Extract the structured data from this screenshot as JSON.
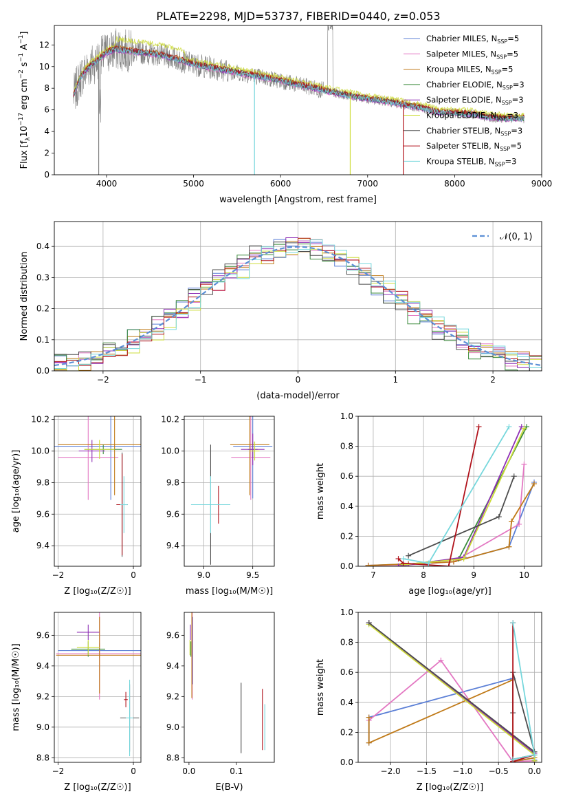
{
  "title": "PLATE=2298, MJD=53737, FIBERID=0440, z=0.053",
  "legend_entries": [
    {
      "name": "Chabrier MILES, N$_{SSP}$=5",
      "label": "Chabrier MILES, N",
      "sub": "SSP",
      "suffix": "=5",
      "color": "#5b7fd6"
    },
    {
      "name": "Salpeter MILES, N$_{SSP}$=5",
      "label": "Salpeter MILES, N",
      "sub": "SSP",
      "suffix": "=5",
      "color": "#e377c2"
    },
    {
      "name": "Kroupa MILES, N$_{SSP}$=5",
      "label": "Kroupa MILES, N",
      "sub": "SSP",
      "suffix": "=5",
      "color": "#c07a18"
    },
    {
      "name": "Chabrier ELODIE, N$_{SSP}$=3",
      "label": "Chabrier ELODIE, N",
      "sub": "SSP",
      "suffix": "=3",
      "color": "#3a8a3a"
    },
    {
      "name": "Salpeter ELODIE, N$_{SSP}$=3",
      "label": "Salpeter ELODIE, N",
      "sub": "SSP",
      "suffix": "=3",
      "color": "#8e2fb5"
    },
    {
      "name": "Kroupa ELODIE, N$_{SSP}$=3",
      "label": "Kroupa ELODIE, N",
      "sub": "SSP",
      "suffix": "=3",
      "color": "#cddc39"
    },
    {
      "name": "Chabrier STELIB, N$_{SSP}$=3",
      "label": "Chabrier STELIB, N",
      "sub": "SSP",
      "suffix": "=3",
      "color": "#4d4d4d"
    },
    {
      "name": "Salpeter STELIB, N$_{SSP}$=5",
      "label": "Salpeter STELIB, N",
      "sub": "SSP",
      "suffix": "=5",
      "color": "#b0121b"
    },
    {
      "name": "Kroupa STELIB, N$_{SSP}$=3",
      "label": "Kroupa STELIB, N",
      "sub": "SSP",
      "suffix": "=3",
      "color": "#76d7dc"
    }
  ],
  "data_color": "#808080",
  "gaussian_color": "#5b8fd6",
  "chart_data": [
    {
      "id": "spectrum",
      "type": "line",
      "xlabel": "wavelength [Angstrom, rest frame]",
      "ylabel_parts": [
        "Flux [f",
        "λ",
        "10",
        "−17",
        " erg cm",
        "−2",
        " s",
        "−1",
        " A",
        "−1",
        "]"
      ],
      "xlim": [
        3400,
        9000
      ],
      "ylim": [
        0,
        13.8
      ],
      "xticks": [
        "4000",
        "5000",
        "6000",
        "7000",
        "8000",
        "9000"
      ],
      "yticks": [
        "0",
        "2",
        "4",
        "6",
        "8",
        "10",
        "12"
      ],
      "spectrum_anchors": {
        "x": [
          3620,
          3700,
          3800,
          3900,
          4000,
          4100,
          4200,
          4400,
          4600,
          4800,
          5000,
          5200,
          5400,
          5600,
          5800,
          6000,
          6200,
          6400,
          6600,
          6800,
          7000,
          7200,
          7400,
          7600,
          7800,
          8000,
          8200,
          8400,
          8600,
          8800
        ],
        "y": [
          7.3,
          9.0,
          10.0,
          10.6,
          11.3,
          11.6,
          11.5,
          11.3,
          11.1,
          10.7,
          10.2,
          9.9,
          9.6,
          9.3,
          9.0,
          8.7,
          8.3,
          8.0,
          7.6,
          7.3,
          7.0,
          6.8,
          6.5,
          6.2,
          5.8,
          5.7,
          5.6,
          5.3,
          5.2,
          5.2
        ]
      },
      "model_offsets": [
        0.0,
        -0.1,
        0.15,
        0.0,
        -0.05,
        0.35,
        0.05,
        0.1,
        -0.02
      ]
    },
    {
      "id": "residual_histogram",
      "type": "histogram",
      "xlabel": "(data-model)/error",
      "ylabel": "Normed distribution",
      "xlim": [
        -2.5,
        2.5
      ],
      "ylim": [
        0,
        0.48
      ],
      "xticks": [
        "−2",
        "−1",
        "0",
        "1",
        "2"
      ],
      "yticks": [
        "0.0",
        "0.1",
        "0.2",
        "0.3",
        "0.4"
      ],
      "bin_width": 0.125,
      "gaussian_label": "𝒩(0, 1)"
    },
    {
      "id": "age_vs_Z",
      "type": "errorbar",
      "xlabel": "Z [log₁₀(Z/Z☉)]",
      "ylabel": "age  [log₁₀(age/yr)]",
      "xlim": [
        -2.1,
        0.2
      ],
      "ylim": [
        9.27,
        10.22
      ],
      "xticks": [
        "−2",
        "0"
      ],
      "xtick_values": [
        -2,
        0
      ],
      "yticks": [
        "9.4",
        "9.6",
        "9.8",
        "10.0",
        "10.2"
      ],
      "ytick_values": [
        9.4,
        9.6,
        9.8,
        10.0,
        10.2
      ],
      "points": [
        {
          "x": -0.6,
          "y": 10.03,
          "xerr": 1.5,
          "yerr": 0.34,
          "c": 0
        },
        {
          "x": -1.2,
          "y": 9.96,
          "xerr": 0.8,
          "yerr": 0.27,
          "c": 1
        },
        {
          "x": -0.5,
          "y": 10.04,
          "xerr": 1.5,
          "yerr": 0.32,
          "c": 2
        },
        {
          "x": -0.8,
          "y": 10.01,
          "xerr": 0.5,
          "yerr": 0.03,
          "c": 3
        },
        {
          "x": -1.1,
          "y": 10.0,
          "xerr": 0.35,
          "yerr": 0.07,
          "c": 4
        },
        {
          "x": -0.9,
          "y": 10.01,
          "xerr": 0.4,
          "yerr": 0.06,
          "c": 5
        },
        {
          "x": -0.3,
          "y": 9.66,
          "xerr": 0.15,
          "yerr": 0.33,
          "c": 6
        },
        {
          "x": -0.3,
          "y": 9.66,
          "xerr": 0.15,
          "yerr": 0.32,
          "c": 7
        },
        {
          "x": -0.25,
          "y": 9.66,
          "xerr": 0.1,
          "yerr": 0.18,
          "c": 8
        }
      ]
    },
    {
      "id": "age_vs_mass",
      "type": "errorbar",
      "xlabel": "mass [log₁₀(M/M☉)]",
      "ylabel": "",
      "xlim": [
        8.8,
        9.72
      ],
      "ylim": [
        9.27,
        10.22
      ],
      "xticks": [
        "9.0",
        "9.5"
      ],
      "xtick_values": [
        9.0,
        9.5
      ],
      "yticks": [
        "9.4",
        "9.6",
        "9.8",
        "10.0",
        "10.2"
      ],
      "ytick_values": [
        9.4,
        9.6,
        9.8,
        10.0,
        10.2
      ],
      "points": [
        {
          "x": 9.5,
          "y": 10.03,
          "xerr": 0.2,
          "yerr": 0.33,
          "c": 0
        },
        {
          "x": 9.48,
          "y": 9.96,
          "xerr": 0.2,
          "yerr": 0.27,
          "c": 1
        },
        {
          "x": 9.47,
          "y": 10.04,
          "xerr": 0.2,
          "yerr": 0.32,
          "c": 2
        },
        {
          "x": 9.5,
          "y": 10.01,
          "xerr": 0.05,
          "yerr": 0.05,
          "c": 3
        },
        {
          "x": 9.5,
          "y": 10.01,
          "xerr": 0.12,
          "yerr": 0.1,
          "c": 4
        },
        {
          "x": 9.52,
          "y": 10.0,
          "xerr": 0.05,
          "yerr": 0.06,
          "c": 5
        },
        {
          "x": 9.07,
          "y": 9.66,
          "xerr": 0.2,
          "yerr": 0.38,
          "c": 6
        },
        {
          "x": 9.15,
          "y": 9.66,
          "xerr": 0.1,
          "yerr": 0.12,
          "c": 7
        },
        {
          "x": 9.07,
          "y": 9.66,
          "xerr": 0.2,
          "yerr": 0.18,
          "c": 8
        }
      ]
    },
    {
      "id": "mass_weight_vs_age",
      "type": "line",
      "xlabel": "age  [log₁₀(age/yr)]",
      "ylabel": "mass weight",
      "xlim": [
        6.7,
        10.35
      ],
      "ylim": [
        0,
        1.0
      ],
      "xticks": [
        "7",
        "8",
        "9",
        "10"
      ],
      "xtick_values": [
        7,
        8,
        9,
        10
      ],
      "yticks": [
        "0.0",
        "0.2",
        "0.4",
        "0.6",
        "0.8",
        "1.0"
      ],
      "ytick_values": [
        0,
        0.2,
        0.4,
        0.6,
        0.8,
        1.0
      ],
      "series": [
        {
          "c": 0,
          "x": [
            6.9,
            7.7,
            8.6,
            9.7,
            10.2
          ],
          "y": [
            0.005,
            0.015,
            0.03,
            0.13,
            0.56
          ]
        },
        {
          "c": 1,
          "x": [
            6.9,
            7.7,
            8.6,
            9.9,
            10.0
          ],
          "y": [
            0.005,
            0.01,
            0.03,
            0.28,
            0.68
          ]
        },
        {
          "c": 2,
          "x": [
            6.9,
            7.7,
            8.6,
            9.7,
            9.75,
            10.2
          ],
          "y": [
            0.005,
            0.015,
            0.03,
            0.13,
            0.3,
            0.55
          ]
        },
        {
          "c": 3,
          "x": [
            7.6,
            8.7,
            10.05
          ],
          "y": [
            0.01,
            0.05,
            0.93
          ]
        },
        {
          "c": 4,
          "x": [
            7.5,
            8.8,
            9.95
          ],
          "y": [
            0.0,
            0.06,
            0.93
          ]
        },
        {
          "c": 5,
          "x": [
            7.6,
            8.8,
            10.0
          ],
          "y": [
            0.01,
            0.05,
            0.92
          ]
        },
        {
          "c": 6,
          "x": [
            7.7,
            9.5,
            9.8
          ],
          "y": [
            0.07,
            0.33,
            0.6
          ]
        },
        {
          "c": 7,
          "x": [
            7.5,
            7.6,
            8.5,
            9.1
          ],
          "y": [
            0.05,
            0.02,
            0.0,
            0.93
          ]
        },
        {
          "c": 8,
          "x": [
            7.6,
            8.1,
            9.7
          ],
          "y": [
            0.05,
            0.02,
            0.93
          ]
        }
      ]
    },
    {
      "id": "mass_vs_Z",
      "type": "errorbar",
      "xlabel": "Z [log₁₀(Z/Z☉)]",
      "ylabel": "mass [log₁₀(M/M☉)]",
      "xlim": [
        -2.1,
        0.2
      ],
      "ylim": [
        8.77,
        9.75
      ],
      "xticks": [
        "−2",
        "0"
      ],
      "xtick_values": [
        -2,
        0
      ],
      "yticks": [
        "8.8",
        "9.0",
        "9.2",
        "9.4",
        "9.6"
      ],
      "ytick_values": [
        8.8,
        9.0,
        9.2,
        9.4,
        9.6
      ],
      "points": [
        {
          "x": -0.9,
          "y": 9.5,
          "xerr": 1.1,
          "yerr": 0.05,
          "c": 0
        },
        {
          "x": -0.9,
          "y": 9.48,
          "xerr": 1.15,
          "yerr": 0.3,
          "c": 1
        },
        {
          "x": -0.9,
          "y": 9.47,
          "xerr": 1.15,
          "yerr": 0.25,
          "c": 2
        },
        {
          "x": -1.2,
          "y": 9.51,
          "xerr": 0.45,
          "yerr": 0.05,
          "c": 3
        },
        {
          "x": -1.2,
          "y": 9.62,
          "xerr": 0.3,
          "yerr": 0.05,
          "c": 4
        },
        {
          "x": -1.2,
          "y": 9.52,
          "xerr": 0.3,
          "yerr": 0.05,
          "c": 5
        },
        {
          "x": -0.1,
          "y": 9.06,
          "xerr": 0.25,
          "yerr": 0.22,
          "c": 6
        },
        {
          "x": -0.2,
          "y": 9.18,
          "xerr": 0.05,
          "yerr": 0.05,
          "c": 7
        },
        {
          "x": -0.1,
          "y": 9.06,
          "xerr": 0.1,
          "yerr": 0.25,
          "c": 8
        }
      ]
    },
    {
      "id": "mass_vs_ebv",
      "type": "errorbar",
      "xlabel": "E(B-V)",
      "ylabel": "",
      "xlim": [
        -0.01,
        0.18
      ],
      "ylim": [
        8.77,
        9.75
      ],
      "xticks": [
        "0.0",
        "0.1"
      ],
      "xtick_values": [
        0.0,
        0.1
      ],
      "yticks": [
        "8.8",
        "9.0",
        "9.2",
        "9.4",
        "9.6"
      ],
      "ytick_values": [
        8.8,
        9.0,
        9.2,
        9.4,
        9.6
      ],
      "points": [
        {
          "x": 0.008,
          "y": 9.5,
          "xerr": 0,
          "yerr": 0.22,
          "c": 0
        },
        {
          "x": 0.007,
          "y": 9.48,
          "xerr": 0,
          "yerr": 0.3,
          "c": 1
        },
        {
          "x": 0.006,
          "y": 9.47,
          "xerr": 0,
          "yerr": 0.28,
          "c": 2
        },
        {
          "x": 0.004,
          "y": 9.51,
          "xerr": 0,
          "yerr": 0.05,
          "c": 3
        },
        {
          "x": 0.003,
          "y": 9.62,
          "xerr": 0,
          "yerr": 0.05,
          "c": 4
        },
        {
          "x": 0.002,
          "y": 9.52,
          "xerr": 0,
          "yerr": 0.05,
          "c": 5
        },
        {
          "x": 0.11,
          "y": 9.06,
          "xerr": 0,
          "yerr": 0.23,
          "c": 6
        },
        {
          "x": 0.155,
          "y": 9.05,
          "xerr": 0,
          "yerr": 0.2,
          "c": 7
        },
        {
          "x": 0.16,
          "y": 9.0,
          "xerr": 0,
          "yerr": 0.15,
          "c": 8
        }
      ]
    },
    {
      "id": "mass_weight_vs_Z",
      "type": "line",
      "xlabel": "Z [log₁₀(Z/Z☉)]",
      "ylabel": "mass weight",
      "xlim": [
        -2.45,
        0.1
      ],
      "ylim": [
        0,
        1.0
      ],
      "xticks": [
        "−2.0",
        "−1.5",
        "−1.0",
        "−0.5",
        "0.0"
      ],
      "xtick_values": [
        -2.0,
        -1.5,
        -1.0,
        -0.5,
        0.0
      ],
      "yticks": [
        "0.0",
        "0.2",
        "0.4",
        "0.6",
        "0.8",
        "1.0"
      ],
      "ytick_values": [
        0,
        0.2,
        0.4,
        0.6,
        0.8,
        1.0
      ],
      "series": [
        {
          "c": 0,
          "x": [
            -2.3,
            -2.3,
            -0.3,
            -0.3,
            0.0,
            0.0
          ],
          "y": [
            0.13,
            0.3,
            0.56,
            0.005,
            0.03,
            0.015
          ]
        },
        {
          "c": 1,
          "x": [
            -2.3,
            -1.3,
            -0.3,
            0.0
          ],
          "y": [
            0.28,
            0.68,
            0.005,
            0.01
          ]
        },
        {
          "c": 2,
          "x": [
            -2.3,
            -2.3,
            -0.3,
            -0.3,
            0.0
          ],
          "y": [
            0.3,
            0.13,
            0.55,
            0.005,
            0.03
          ]
        },
        {
          "c": 3,
          "x": [
            -2.3,
            0.0,
            0.0
          ],
          "y": [
            0.93,
            0.05,
            0.01
          ]
        },
        {
          "c": 4,
          "x": [
            -2.3,
            0.0,
            0.0
          ],
          "y": [
            0.93,
            0.06,
            0.0
          ]
        },
        {
          "c": 5,
          "x": [
            -2.3,
            0.0,
            0.0
          ],
          "y": [
            0.92,
            0.05,
            0.01
          ]
        },
        {
          "c": 6,
          "x": [
            -2.3,
            0.0,
            -0.3,
            -0.3
          ],
          "y": [
            0.93,
            0.07,
            0.6,
            0.33
          ]
        },
        {
          "c": 7,
          "x": [
            -0.3,
            -0.3,
            0.0,
            -0.3
          ],
          "y": [
            0.93,
            0.005,
            0.05,
            0.02
          ]
        },
        {
          "c": 8,
          "x": [
            -0.3,
            0.0,
            -0.3
          ],
          "y": [
            0.93,
            0.05,
            0.02
          ]
        }
      ]
    }
  ]
}
